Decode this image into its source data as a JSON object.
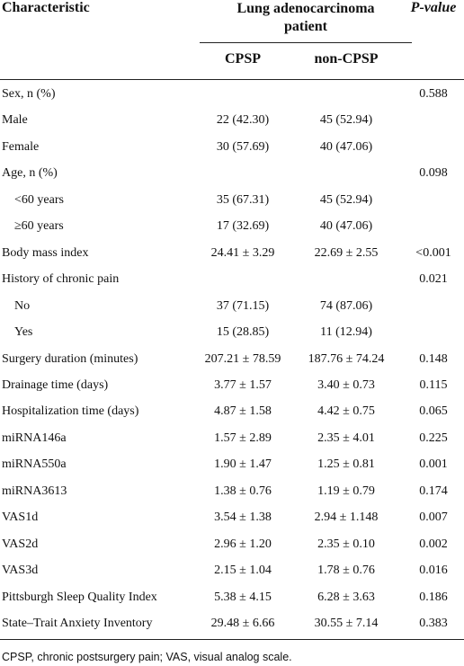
{
  "table": {
    "header": {
      "characteristic": "Characteristic",
      "group": "Lung adenocarcinoma patient",
      "p_value": "P-value",
      "cpsp": "CPSP",
      "non_cpsp": "non-CPSP"
    },
    "rows": [
      {
        "label": "Sex, n (%)",
        "p_value": "0.588"
      },
      {
        "label": "Male",
        "cpsp": "22 (42.30)",
        "non_cpsp": "45 (52.94)"
      },
      {
        "label": "Female",
        "cpsp": "30 (57.69)",
        "non_cpsp": "40 (47.06)"
      },
      {
        "label": "Age, n (%)",
        "p_value": "0.098"
      },
      {
        "label": "<60 years",
        "cpsp": "35 (67.31)",
        "non_cpsp": "45 (52.94)",
        "indent": true
      },
      {
        "label": "≥60 years",
        "cpsp": "17 (32.69)",
        "non_cpsp": "40 (47.06)",
        "indent": true
      },
      {
        "label": "Body mass index",
        "cpsp": "24.41 ± 3.29",
        "non_cpsp": "22.69 ± 2.55",
        "p_value": "<0.001"
      },
      {
        "label": "History of chronic pain",
        "p_value": "0.021"
      },
      {
        "label": "No",
        "cpsp": "37 (71.15)",
        "non_cpsp": "74 (87.06)",
        "indent": true
      },
      {
        "label": "Yes",
        "cpsp": "15 (28.85)",
        "non_cpsp": "11 (12.94)",
        "indent": true
      },
      {
        "label": "Surgery duration (minutes)",
        "cpsp": "207.21 ± 78.59",
        "non_cpsp": "187.76 ± 74.24",
        "p_value": "0.148"
      },
      {
        "label": "Drainage time (days)",
        "cpsp": "3.77 ± 1.57",
        "non_cpsp": "3.40 ± 0.73",
        "p_value": "0.115"
      },
      {
        "label": "Hospitalization time (days)",
        "cpsp": "4.87 ± 1.58",
        "non_cpsp": "4.42 ± 0.75",
        "p_value": "0.065"
      },
      {
        "label": "miRNA146a",
        "cpsp": "1.57 ± 2.89",
        "non_cpsp": "2.35 ± 4.01",
        "p_value": "0.225"
      },
      {
        "label": "miRNA550a",
        "cpsp": "1.90 ± 1.47",
        "non_cpsp": "1.25 ± 0.81",
        "p_value": "0.001"
      },
      {
        "label": "miRNA3613",
        "cpsp": "1.38 ± 0.76",
        "non_cpsp": "1.19 ± 0.79",
        "p_value": "0.174"
      },
      {
        "label": "VAS1d",
        "cpsp": "3.54 ± 1.38",
        "non_cpsp": "2.94 ± 1.148",
        "p_value": "0.007"
      },
      {
        "label": "VAS2d",
        "cpsp": "2.96 ± 1.20",
        "non_cpsp": "2.35 ± 0.10",
        "p_value": "0.002"
      },
      {
        "label": "VAS3d",
        "cpsp": "2.15 ± 1.04",
        "non_cpsp": "1.78 ± 0.76",
        "p_value": "0.016"
      },
      {
        "label": "Pittsburgh Sleep Quality Index",
        "cpsp": "5.38 ± 4.15",
        "non_cpsp": "6.28 ± 3.63",
        "p_value": "0.186"
      },
      {
        "label": "State–Trait Anxiety Inventory",
        "cpsp": "29.48 ± 6.66",
        "non_cpsp": "30.55 ± 7.14",
        "p_value": "0.383"
      }
    ],
    "footnote": "CPSP, chronic postsurgery pain; VAS, visual analog scale."
  }
}
